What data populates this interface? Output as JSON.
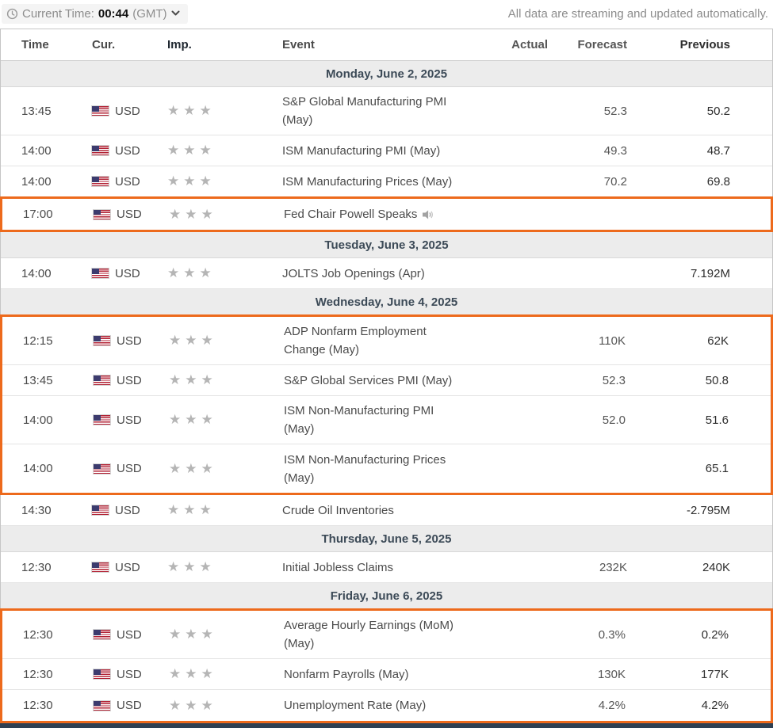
{
  "topbar": {
    "current_time_label": "Current Time:",
    "current_time_value": "00:44",
    "timezone": "(GMT)",
    "streaming_note": "All data are streaming and updated automatically."
  },
  "icons": {
    "star": "★"
  },
  "colors": {
    "highlight_orange": "#ED6A1C",
    "day_header_bg": "#ECECEC",
    "bottom_bar": "#2E4053"
  },
  "table": {
    "columns": {
      "time": "Time",
      "cur": "Cur.",
      "imp": "Imp.",
      "event": "Event",
      "actual": "Actual",
      "forecast": "Forecast",
      "previous": "Previous"
    },
    "rows": [
      {
        "type": "day",
        "label": "Monday, June 2, 2025"
      },
      {
        "type": "event",
        "time": "13:45",
        "currency": "USD",
        "importance": 3,
        "event_lines": [
          "S&P Global Manufacturing PMI",
          "(May)"
        ],
        "actual": "",
        "forecast": "52.3",
        "previous": "50.2",
        "speaker": false,
        "highlighted": false
      },
      {
        "type": "event",
        "time": "14:00",
        "currency": "USD",
        "importance": 3,
        "event_lines": [
          "ISM Manufacturing PMI (May)"
        ],
        "actual": "",
        "forecast": "49.3",
        "previous": "48.7",
        "speaker": false,
        "highlighted": false
      },
      {
        "type": "event",
        "time": "14:00",
        "currency": "USD",
        "importance": 3,
        "event_lines": [
          "ISM Manufacturing Prices (May)"
        ],
        "actual": "",
        "forecast": "70.2",
        "previous": "69.8",
        "speaker": false,
        "highlighted": false
      },
      {
        "type": "event",
        "time": "17:00",
        "currency": "USD",
        "importance": 3,
        "event_lines": [
          "Fed Chair Powell Speaks"
        ],
        "actual": "",
        "forecast": "",
        "previous": "",
        "speaker": true,
        "highlighted": true
      },
      {
        "type": "day",
        "label": "Tuesday, June 3, 2025"
      },
      {
        "type": "event",
        "time": "14:00",
        "currency": "USD",
        "importance": 3,
        "event_lines": [
          "JOLTS Job Openings (Apr)"
        ],
        "actual": "",
        "forecast": "",
        "previous": "7.192M",
        "speaker": false,
        "highlighted": false
      },
      {
        "type": "day",
        "label": "Wednesday, June 4, 2025"
      },
      {
        "type": "event",
        "time": "12:15",
        "currency": "USD",
        "importance": 3,
        "event_lines": [
          "ADP Nonfarm Employment",
          "Change (May)"
        ],
        "actual": "",
        "forecast": "110K",
        "previous": "62K",
        "speaker": false,
        "highlighted": true
      },
      {
        "type": "event",
        "time": "13:45",
        "currency": "USD",
        "importance": 3,
        "event_lines": [
          "S&P Global Services PMI (May)"
        ],
        "actual": "",
        "forecast": "52.3",
        "previous": "50.8",
        "speaker": false,
        "highlighted": true
      },
      {
        "type": "event",
        "time": "14:00",
        "currency": "USD",
        "importance": 3,
        "event_lines": [
          "ISM Non-Manufacturing PMI",
          "(May)"
        ],
        "actual": "",
        "forecast": "52.0",
        "previous": "51.6",
        "speaker": false,
        "highlighted": true
      },
      {
        "type": "event",
        "time": "14:00",
        "currency": "USD",
        "importance": 3,
        "event_lines": [
          "ISM Non-Manufacturing Prices",
          "(May)"
        ],
        "actual": "",
        "forecast": "",
        "previous": "65.1",
        "speaker": false,
        "highlighted": true
      },
      {
        "type": "event",
        "time": "14:30",
        "currency": "USD",
        "importance": 3,
        "event_lines": [
          "Crude Oil Inventories"
        ],
        "actual": "",
        "forecast": "",
        "previous": "-2.795M",
        "speaker": false,
        "highlighted": false
      },
      {
        "type": "day",
        "label": "Thursday, June 5, 2025"
      },
      {
        "type": "event",
        "time": "12:30",
        "currency": "USD",
        "importance": 3,
        "event_lines": [
          "Initial Jobless Claims"
        ],
        "actual": "",
        "forecast": "232K",
        "previous": "240K",
        "speaker": false,
        "highlighted": false
      },
      {
        "type": "day",
        "label": "Friday, June 6, 2025"
      },
      {
        "type": "event",
        "time": "12:30",
        "currency": "USD",
        "importance": 3,
        "event_lines": [
          "Average Hourly Earnings (MoM)",
          "(May)"
        ],
        "actual": "",
        "forecast": "0.3%",
        "previous": "0.2%",
        "speaker": false,
        "highlighted": true
      },
      {
        "type": "event",
        "time": "12:30",
        "currency": "USD",
        "importance": 3,
        "event_lines": [
          "Nonfarm Payrolls (May)"
        ],
        "actual": "",
        "forecast": "130K",
        "previous": "177K",
        "speaker": false,
        "highlighted": true
      },
      {
        "type": "event",
        "time": "12:30",
        "currency": "USD",
        "importance": 3,
        "event_lines": [
          "Unemployment Rate (May)"
        ],
        "actual": "",
        "forecast": "4.2%",
        "previous": "4.2%",
        "speaker": false,
        "highlighted": true
      }
    ]
  }
}
